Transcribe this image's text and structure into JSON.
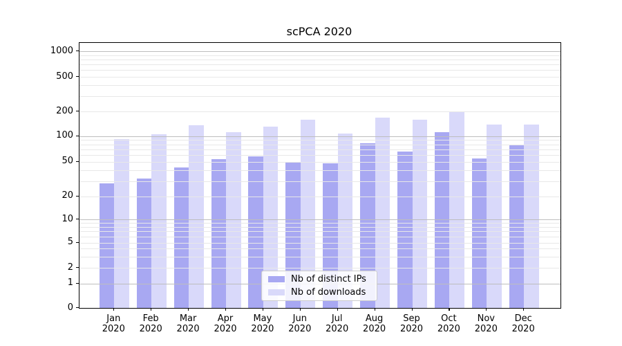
{
  "chart_data": {
    "type": "bar",
    "title": "scPCA 2020",
    "year_label": "2020",
    "categories": [
      "Jan",
      "Feb",
      "Mar",
      "Apr",
      "May",
      "Jun",
      "Jul",
      "Aug",
      "Sep",
      "Oct",
      "Nov",
      "Dec"
    ],
    "series": [
      {
        "name": "Nb of distinct IPs",
        "color": "#a8a8f2",
        "values": [
          28,
          32,
          43,
          54,
          58,
          49,
          48,
          83,
          66,
          112,
          55,
          80
        ]
      },
      {
        "name": "Nb of downloads",
        "color": "#d9d9fa",
        "values": [
          92,
          105,
          135,
          112,
          130,
          160,
          107,
          168,
          158,
          198,
          138,
          139
        ]
      }
    ],
    "yticks": [
      0,
      1,
      2,
      5,
      10,
      20,
      50,
      100,
      200,
      500,
      1000
    ],
    "yscale": "pseudo-log",
    "ylim": [
      0,
      1260
    ],
    "grid": "on",
    "legend_position": "lower center"
  },
  "palette": {
    "background": "#ffffff",
    "axis": "#000000",
    "grid_major": "#bdbdbd",
    "grid_minor": "#e8e8e8",
    "legend_border": "#cccccc",
    "text": "#000000"
  }
}
